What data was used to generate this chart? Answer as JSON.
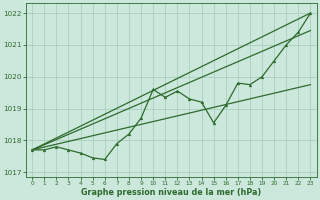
{
  "x": [
    0,
    1,
    2,
    3,
    4,
    5,
    6,
    7,
    8,
    9,
    10,
    11,
    12,
    13,
    14,
    15,
    16,
    17,
    18,
    19,
    20,
    21,
    22,
    23
  ],
  "main_line": [
    1017.7,
    1017.7,
    1017.8,
    1017.7,
    1017.6,
    1017.45,
    1017.4,
    1017.9,
    1018.2,
    1018.7,
    1019.6,
    1019.35,
    1019.55,
    1019.3,
    1019.2,
    1018.55,
    1019.1,
    1019.8,
    1019.75,
    1020.0,
    1020.5,
    1021.0,
    1021.4,
    1022.0
  ],
  "trend1_x": [
    0,
    23
  ],
  "trend1_y": [
    1017.7,
    1022.0
  ],
  "trend2_x": [
    0,
    23
  ],
  "trend2_y": [
    1017.7,
    1021.45
  ],
  "trend3_x": [
    0,
    23
  ],
  "trend3_y": [
    1017.7,
    1019.75
  ],
  "line_color": "#2d6a2d",
  "bg_color": "#cce8dc",
  "grid_color": "#aacfbe",
  "xlabel": "Graphe pression niveau de la mer (hPa)",
  "ylim": [
    1016.85,
    1022.3
  ],
  "yticks": [
    1017,
    1018,
    1019,
    1020,
    1021,
    1022
  ],
  "xticks": [
    0,
    1,
    2,
    3,
    4,
    5,
    6,
    7,
    8,
    9,
    10,
    11,
    12,
    13,
    14,
    15,
    16,
    17,
    18,
    19,
    20,
    21,
    22,
    23
  ],
  "xlim": [
    -0.5,
    23.5
  ]
}
